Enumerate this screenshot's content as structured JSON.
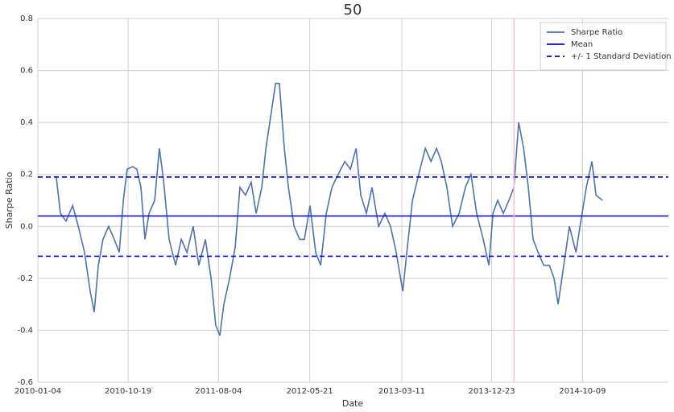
{
  "chart_data": {
    "type": "line",
    "title": "50",
    "x_label": "Date",
    "y_label": "Sharpe Ratio",
    "x": [
      "2010-03-04",
      "2010-03-17",
      "2010-04-04",
      "2010-04-25",
      "2010-05-13",
      "2010-06-02",
      "2010-06-20",
      "2010-07-03",
      "2010-07-16",
      "2010-07-31",
      "2010-08-18",
      "2010-09-05",
      "2010-09-21",
      "2010-10-04",
      "2010-10-16",
      "2010-11-03",
      "2010-11-16",
      "2010-11-29",
      "2010-12-12",
      "2010-12-25",
      "2011-01-12",
      "2011-01-27",
      "2011-02-09",
      "2011-02-27",
      "2011-03-20",
      "2011-04-07",
      "2011-04-25",
      "2011-05-15",
      "2011-06-02",
      "2011-06-23",
      "2011-07-11",
      "2011-07-26",
      "2011-08-08",
      "2011-08-21",
      "2011-09-08",
      "2011-09-26",
      "2011-10-11",
      "2011-10-29",
      "2011-11-16",
      "2011-12-02",
      "2011-12-20",
      "2012-01-02",
      "2012-01-17",
      "2012-02-02",
      "2012-02-14",
      "2012-03-01",
      "2012-03-14",
      "2012-04-01",
      "2012-04-19",
      "2012-05-04",
      "2012-05-22",
      "2012-06-09",
      "2012-06-25",
      "2012-07-13",
      "2012-07-31",
      "2012-08-20",
      "2012-09-10",
      "2012-09-28",
      "2012-10-16",
      "2012-10-31",
      "2012-11-18",
      "2012-12-06",
      "2012-12-27",
      "2013-01-16",
      "2013-02-03",
      "2013-02-21",
      "2013-03-14",
      "2013-03-27",
      "2013-04-14",
      "2013-05-04",
      "2013-05-25",
      "2013-06-12",
      "2013-06-30",
      "2013-07-15",
      "2013-08-02",
      "2013-08-20",
      "2013-09-10",
      "2013-09-30",
      "2013-10-18",
      "2013-11-05",
      "2013-11-26",
      "2013-12-14",
      "2013-12-27",
      "2014-01-11",
      "2014-01-29",
      "2014-02-16",
      "2014-03-04",
      "2014-03-19",
      "2014-04-04",
      "2014-04-19",
      "2014-05-04",
      "2014-05-20",
      "2014-06-07",
      "2014-06-25",
      "2014-07-10",
      "2014-07-23",
      "2014-08-10",
      "2014-08-28",
      "2014-09-18",
      "2014-10-01",
      "2014-10-21",
      "2014-11-08",
      "2014-11-21",
      "2014-12-12"
    ],
    "series": [
      {
        "name": "Sharpe Ratio",
        "color": "#4c72b0",
        "values": [
          0.19,
          0.05,
          0.02,
          0.08,
          0.0,
          -0.1,
          -0.25,
          -0.33,
          -0.15,
          -0.05,
          0.0,
          -0.05,
          -0.1,
          0.1,
          0.22,
          0.23,
          0.22,
          0.15,
          -0.05,
          0.05,
          0.1,
          0.3,
          0.18,
          -0.05,
          -0.15,
          -0.05,
          -0.1,
          0.0,
          -0.15,
          -0.05,
          -0.2,
          -0.38,
          -0.42,
          -0.3,
          -0.2,
          -0.08,
          0.15,
          0.12,
          0.17,
          0.05,
          0.15,
          0.3,
          0.42,
          0.55,
          0.55,
          0.3,
          0.15,
          0.0,
          -0.05,
          -0.05,
          0.08,
          -0.1,
          -0.15,
          0.05,
          0.15,
          0.2,
          0.25,
          0.22,
          0.3,
          0.12,
          0.05,
          0.15,
          0.0,
          0.05,
          0.0,
          -0.1,
          -0.25,
          -0.1,
          0.1,
          0.2,
          0.3,
          0.25,
          0.3,
          0.25,
          0.15,
          0.0,
          0.05,
          0.15,
          0.2,
          0.05,
          -0.05,
          -0.15,
          0.05,
          0.1,
          0.05,
          0.1,
          0.15,
          0.4,
          0.3,
          0.15,
          -0.05,
          -0.1,
          -0.15,
          -0.15,
          -0.2,
          -0.3,
          -0.15,
          0.0,
          -0.1,
          0.0,
          0.15,
          0.25,
          0.12,
          0.1
        ]
      }
    ],
    "hlines": [
      {
        "name": "Mean",
        "values": [
          0.04
        ],
        "color": "#0000ff",
        "style": "solid"
      },
      {
        "name": "+/- 1 Standard Deviation",
        "values": [
          0.19,
          -0.115
        ],
        "color": "#0000ff",
        "style": "dashed"
      }
    ],
    "vline": {
      "x": "2014-03-04",
      "color": "#ffc0cb"
    },
    "xlim": [
      "2010-01-04",
      "2015-07-10"
    ],
    "xticks": [
      "2010-01-04",
      "2010-10-19",
      "2011-08-04",
      "2012-05-21",
      "2013-03-11",
      "2013-12-23",
      "2014-10-09"
    ],
    "ylim": [
      -0.6,
      0.8
    ],
    "yticks": [
      -0.6,
      -0.4,
      -0.2,
      {
        "value": 0,
        "label": "0.0"
      },
      0.2,
      0.4,
      0.6,
      0.8
    ],
    "grid": true,
    "legend": "upper right"
  }
}
